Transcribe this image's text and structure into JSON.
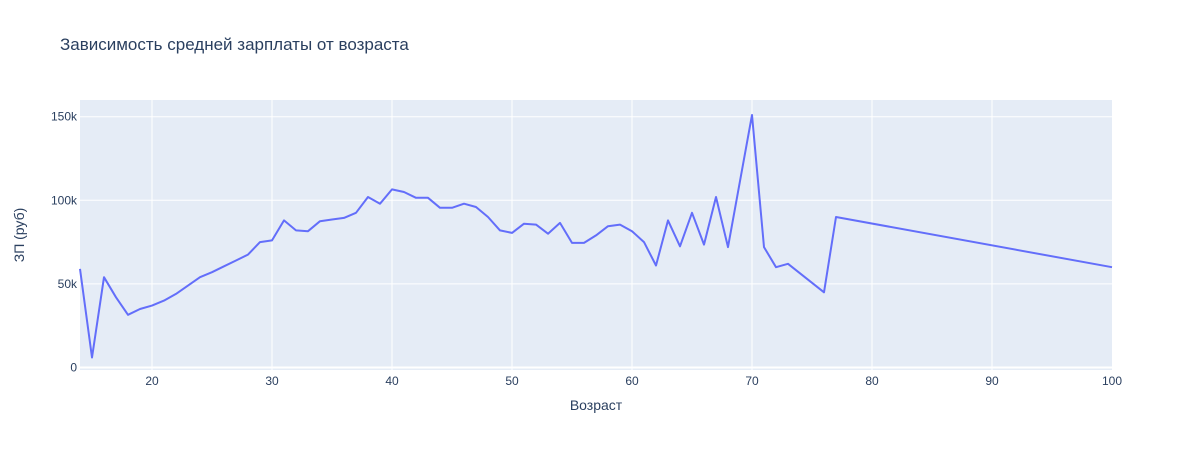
{
  "chart_data": {
    "type": "line",
    "title": "Зависимость средней зарплаты от возраста",
    "xlabel": "Возраст",
    "ylabel": "ЗП (руб)",
    "xlim": [
      14,
      100
    ],
    "ylim": [
      -1500,
      160000
    ],
    "x_ticks": [
      20,
      30,
      40,
      50,
      60,
      70,
      80,
      90,
      100
    ],
    "y_ticks": [
      0,
      50000,
      100000,
      150000
    ],
    "y_tick_labels": [
      "0",
      "50k",
      "100k",
      "150k"
    ],
    "grid": true,
    "legend": "none",
    "colors": {
      "plot_bg": "#e5ecf6",
      "line": "#636efa",
      "grid": "#ffffff",
      "text": "#2a3f5f"
    },
    "series": [
      {
        "x": [
          14,
          15,
          16,
          17,
          18,
          19,
          20,
          21,
          22,
          23,
          24,
          25,
          26,
          27,
          28,
          29,
          30,
          31,
          32,
          33,
          34,
          35,
          36,
          37,
          38,
          39,
          40,
          41,
          42,
          43,
          44,
          45,
          46,
          47,
          48,
          49,
          50,
          51,
          52,
          53,
          54,
          55,
          56,
          57,
          58,
          59,
          60,
          61,
          62,
          63,
          64,
          65,
          66,
          67,
          68,
          70,
          71,
          72,
          73,
          76,
          77,
          100
        ],
        "y": [
          59000,
          6000,
          54000,
          42000,
          31500,
          35000,
          37000,
          40000,
          44000,
          49000,
          54000,
          57000,
          60500,
          64000,
          67500,
          75000,
          76000,
          88000,
          82000,
          81500,
          87500,
          88500,
          89500,
          92500,
          102000,
          98000,
          106500,
          105000,
          101500,
          101500,
          95500,
          95500,
          98000,
          96000,
          90000,
          82000,
          80500,
          86000,
          85500,
          80000,
          86500,
          74500,
          74500,
          79000,
          84500,
          85500,
          81500,
          75000,
          61000,
          88000,
          72500,
          92500,
          73500,
          102000,
          72000,
          151000,
          72000,
          60000,
          62000,
          45000,
          90000,
          60000
        ]
      }
    ]
  }
}
